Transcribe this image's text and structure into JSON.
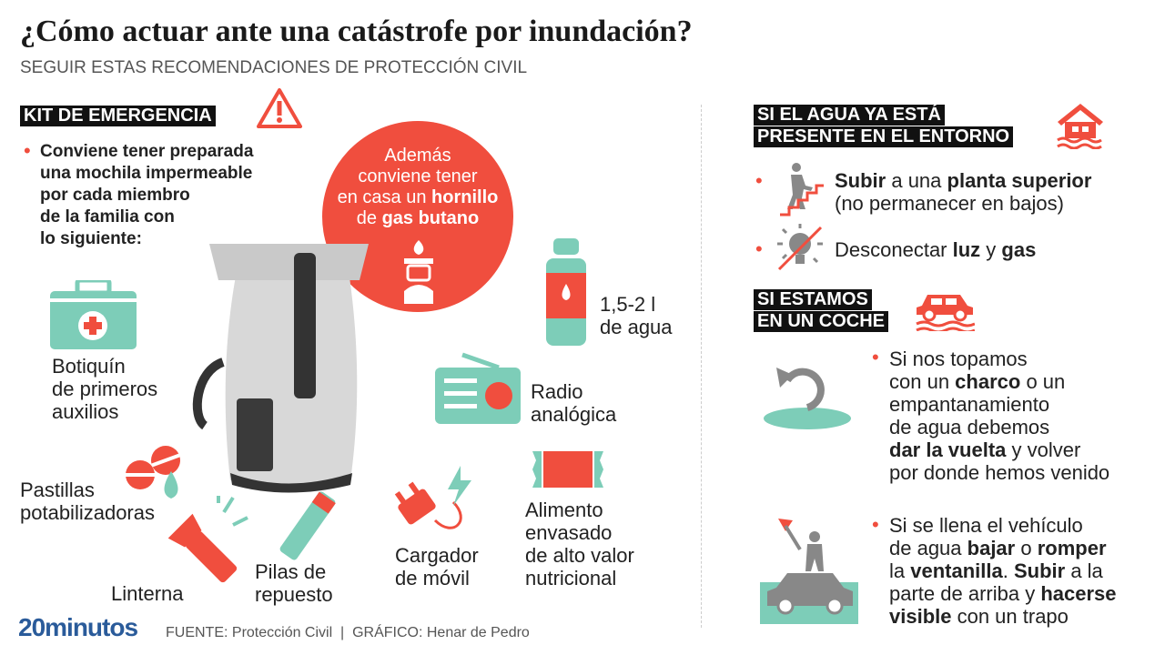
{
  "header": {
    "title": "¿Cómo actuar ante una catástrofe por inundación?",
    "subtitle": "SEGUIR ESTAS RECOMENDACIONES DE PROTECCIÓN CIVIL"
  },
  "kit": {
    "heading": "KIT DE EMERGENCIA",
    "intro": [
      "Conviene tener preparada",
      "una mochila impermeable",
      "por cada miembro",
      "de la familia con",
      "lo siguiente:"
    ],
    "extra": [
      [
        {
          "t": "Además"
        }
      ],
      [
        {
          "t": "conviene tener"
        }
      ],
      [
        {
          "t": "en casa un "
        },
        {
          "t": "hornillo",
          "b": true
        }
      ],
      [
        {
          "t": "de "
        },
        {
          "t": "gas butano",
          "b": true
        }
      ]
    ],
    "items": {
      "agua": [
        "1,5-2 l",
        "de agua"
      ],
      "botiquin": [
        "Botiquín",
        "de primeros",
        "auxilios"
      ],
      "radio": [
        "Radio",
        "analógica"
      ],
      "pastillas": [
        "Pastillas",
        "potabilizadoras"
      ],
      "linterna": [
        "Linterna"
      ],
      "pilas": [
        "Pilas de",
        "repuesto"
      ],
      "cargador": [
        "Cargador",
        "de móvil"
      ],
      "alimento": [
        "Alimento",
        "envasado",
        "de alto valor",
        "nutricional"
      ]
    }
  },
  "agua_presente": {
    "heading": [
      "SI EL AGUA YA ESTÁ",
      "PRESENTE EN EL ENTORNO"
    ],
    "bullets": [
      [
        [
          {
            "t": "Subir",
            "b": true
          },
          {
            "t": " a una "
          },
          {
            "t": "planta superior",
            "b": true
          }
        ],
        [
          {
            "t": "(no permanecer en bajos)"
          }
        ]
      ],
      [
        [
          {
            "t": "Desconectar "
          },
          {
            "t": "luz",
            "b": true
          },
          {
            "t": " y "
          },
          {
            "t": "gas",
            "b": true
          }
        ]
      ]
    ]
  },
  "coche": {
    "heading": [
      "SI ESTAMOS",
      "EN UN COCHE"
    ],
    "bullets": [
      [
        [
          {
            "t": "Si nos topamos"
          }
        ],
        [
          {
            "t": "con un "
          },
          {
            "t": "charco",
            "b": true
          },
          {
            "t": " o un"
          }
        ],
        [
          {
            "t": "empantanamiento"
          }
        ],
        [
          {
            "t": "de agua debemos"
          }
        ],
        [
          {
            "t": "dar la vuelta",
            "b": true
          },
          {
            "t": " y volver"
          }
        ],
        [
          {
            "t": "por donde hemos venido"
          }
        ]
      ],
      [
        [
          {
            "t": "Si se llena el vehículo"
          }
        ],
        [
          {
            "t": "de agua "
          },
          {
            "t": "bajar",
            "b": true
          },
          {
            "t": " o "
          },
          {
            "t": "romper",
            "b": true
          }
        ],
        [
          {
            "t": "la "
          },
          {
            "t": "ventanilla",
            "b": true
          },
          {
            "t": ". "
          },
          {
            "t": "Subir",
            "b": true
          },
          {
            "t": " a la"
          }
        ],
        [
          {
            "t": "parte de arriba y "
          },
          {
            "t": "hacerse",
            "b": true
          }
        ],
        [
          {
            "t": "visible",
            "b": true
          },
          {
            "t": " con un trapo"
          }
        ]
      ]
    ]
  },
  "footer": {
    "logo": "20minutos",
    "credit": "FUENTE: Protección Civil  |  GRÁFICO: Henar de Pedro"
  },
  "colors": {
    "accent": "#f04e3e",
    "teal": "#7dcdb8",
    "logo": "#2a5b9a"
  }
}
